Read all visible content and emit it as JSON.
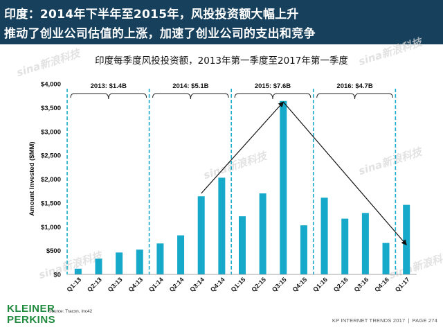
{
  "header": {
    "line1": "印度：2014年下半年至2015年，风投投资额大幅上升",
    "line2": "推动了创业公司估值的上涨，加速了创业公司的支出和竞争"
  },
  "watermark": "sina新浪科技",
  "chart_data": {
    "type": "bar",
    "title": "印度每季度风投投资额，2013年第一季度至2017年第一季度",
    "ylabel": "Amount Invested ($MM)",
    "categories": [
      "Q1:13",
      "Q2:13",
      "Q3:13",
      "Q4:13",
      "Q1:14",
      "Q2:14",
      "Q3:14",
      "Q4:14",
      "Q1:15",
      "Q2:15",
      "Q3:15",
      "Q4:15",
      "Q1:16",
      "Q2:16",
      "Q3:16",
      "Q4:16",
      "Q1:17"
    ],
    "values": [
      120,
      330,
      460,
      520,
      650,
      820,
      1640,
      2030,
      1220,
      1700,
      3640,
      1030,
      1610,
      1170,
      1290,
      660,
      1460
    ],
    "ylim": [
      0,
      4000
    ],
    "yticks": [
      "$0",
      "$500",
      "$1,000",
      "$1,500",
      "$2,000",
      "$2,500",
      "$3,000",
      "$3,500",
      "$4,000"
    ],
    "bar_color": "#16a9c9",
    "divider_color": "#16a9c9",
    "periods": [
      {
        "label": "2013: $1.4B",
        "from": 0,
        "to": 3
      },
      {
        "label": "2014: $5.1B",
        "from": 4,
        "to": 7
      },
      {
        "label": "2015: $7.6B",
        "from": 8,
        "to": 11
      },
      {
        "label": "2016: $4.7B",
        "from": 12,
        "to": 15
      }
    ],
    "trend_arrows": [
      {
        "from": {
          "x": 6,
          "y": 1700
        },
        "to": {
          "x": 10,
          "y": 3620
        }
      },
      {
        "from": {
          "x": 10,
          "y": 3620
        },
        "to": {
          "x": 16,
          "y": 620
        }
      }
    ]
  },
  "logo": {
    "line1": "KLEINER",
    "line2": "PERKINS",
    "color": "#1d8a3c"
  },
  "source": "Source: Tracxn, Inc42",
  "footer": {
    "left": "KP INTERNET TRENDS 2017",
    "sep": "|",
    "right": "PAGE 274"
  }
}
